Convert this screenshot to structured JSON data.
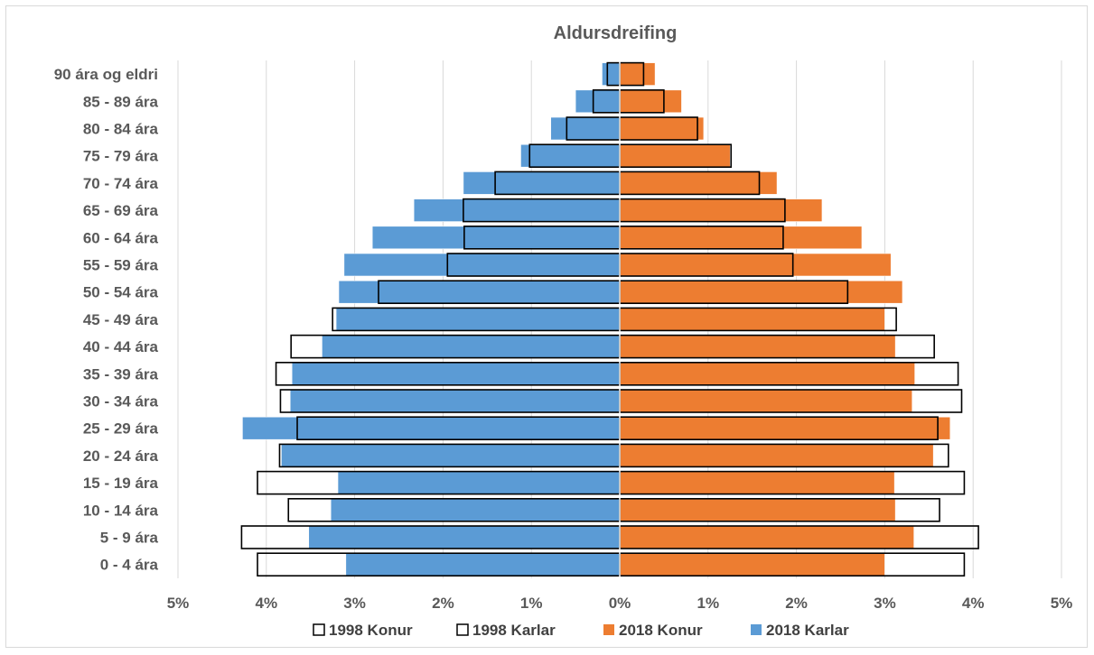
{
  "chart_data": {
    "type": "bar",
    "orientation": "horizontal",
    "title": "Aldursdreifing",
    "categories": [
      "90 ára og eldri",
      "85 - 89 ára",
      "80 - 84 ára",
      "75 - 79 ára",
      "70 - 74 ára",
      "65 - 69 ára",
      "60 - 64 ára",
      "55 - 59 ára",
      "50 - 54 ára",
      "45 - 49 ára",
      "40 - 44 ára",
      "35 - 39 ára",
      "30 - 34 ára",
      "25 - 29 ára",
      "20 - 24 ára",
      "15 - 19 ára",
      "10 - 14 ára",
      "5 - 9 ára",
      "0 - 4 ára"
    ],
    "x_ticks": [
      "5%",
      "4%",
      "3%",
      "2%",
      "1%",
      "0%",
      "1%",
      "2%",
      "3%",
      "4%",
      "5%"
    ],
    "xlim": [
      -5,
      5
    ],
    "grid": true,
    "legend_position": "bottom",
    "series": [
      {
        "name": "2018 Karlar",
        "side": "left",
        "style": "filled",
        "color": "#5b9bd5",
        "values": [
          0.2,
          0.5,
          0.78,
          1.12,
          1.77,
          2.33,
          2.8,
          3.12,
          3.18,
          3.21,
          3.37,
          3.71,
          3.73,
          4.27,
          3.83,
          3.19,
          3.27,
          3.52,
          3.1
        ]
      },
      {
        "name": "2018 Konur",
        "side": "right",
        "style": "filled",
        "color": "#ed7d31",
        "values": [
          0.4,
          0.7,
          0.95,
          1.25,
          1.78,
          2.29,
          2.74,
          3.07,
          3.2,
          3.0,
          3.12,
          3.34,
          3.31,
          3.74,
          3.55,
          3.11,
          3.12,
          3.33,
          3.0
        ]
      },
      {
        "name": "1998 Karlar",
        "side": "left",
        "style": "outline",
        "color": "#000000",
        "values": [
          0.14,
          0.3,
          0.6,
          1.02,
          1.41,
          1.77,
          1.76,
          1.95,
          2.73,
          3.25,
          3.72,
          3.89,
          3.84,
          3.65,
          3.85,
          4.1,
          3.75,
          4.28,
          4.1
        ]
      },
      {
        "name": "1998 Konur",
        "side": "right",
        "style": "outline",
        "color": "#000000",
        "values": [
          0.27,
          0.5,
          0.88,
          1.26,
          1.58,
          1.87,
          1.85,
          1.96,
          2.58,
          3.13,
          3.56,
          3.83,
          3.87,
          3.6,
          3.72,
          3.9,
          3.62,
          4.06,
          3.9
        ]
      }
    ],
    "legend": [
      {
        "label": "1998 Konur",
        "style": "outline",
        "color": "#000000"
      },
      {
        "label": "1998 Karlar",
        "style": "outline",
        "color": "#000000"
      },
      {
        "label": "2018 Konur",
        "style": "filled",
        "color": "#ed7d31"
      },
      {
        "label": "2018 Karlar",
        "style": "filled",
        "color": "#5b9bd5"
      }
    ]
  }
}
